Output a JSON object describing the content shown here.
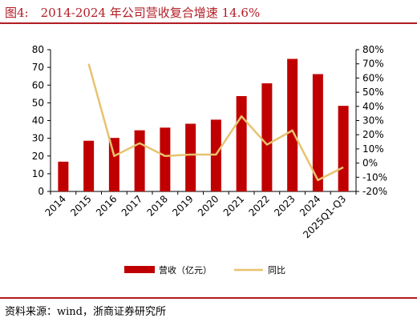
{
  "header": {
    "title": "图4:　2014-2024 年公司营收复合增速 14.6%"
  },
  "footer": {
    "source": "资料来源：wind，浙商证券研究所"
  },
  "colors": {
    "bar": "#c00000",
    "line": "#e8c26e",
    "rule": "#b21c24"
  },
  "chart_data": {
    "type": "bar",
    "categories": [
      "2014",
      "2015",
      "2016",
      "2017",
      "2018",
      "2019",
      "2020",
      "2021",
      "2022",
      "2023",
      "2024",
      "2025Q1-Q3"
    ],
    "series": [
      {
        "name": "营收（亿元）",
        "type": "bar",
        "axis": "left",
        "values": [
          16.8,
          28.6,
          30.2,
          34.5,
          36.0,
          38.2,
          40.5,
          53.8,
          61.0,
          74.8,
          66.2,
          48.3
        ]
      },
      {
        "name": "同比",
        "type": "line",
        "axis": "right",
        "values": [
          null,
          70,
          5,
          14,
          5,
          6,
          6,
          33,
          13,
          23,
          -12,
          -3
        ]
      }
    ],
    "left_axis": {
      "min": 0,
      "max": 80,
      "ticks": [
        0,
        10,
        20,
        30,
        40,
        50,
        60,
        70,
        80
      ]
    },
    "right_axis": {
      "min": -20,
      "max": 80,
      "unit": "%",
      "ticks": [
        -20,
        -10,
        0,
        10,
        20,
        30,
        40,
        50,
        60,
        70,
        80
      ]
    },
    "grid": false,
    "legend": "bottom"
  }
}
